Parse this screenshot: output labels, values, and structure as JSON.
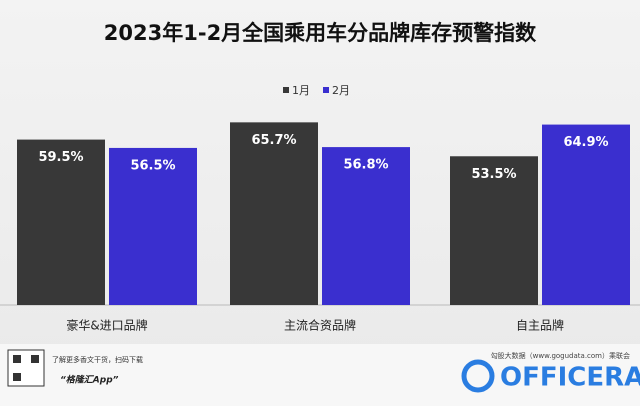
{
  "chart_data": {
    "type": "bar",
    "title": "2023年1-2月全国乘用车分品牌库存预警指数",
    "categories": [
      "豪华&进口品牌",
      "主流合资品牌",
      "自主品牌"
    ],
    "series": [
      {
        "name": "1月",
        "color": "#383838",
        "values": [
          59.5,
          65.7,
          53.5
        ],
        "value_labels": [
          "59.5%",
          "65.7%",
          "53.5%"
        ]
      },
      {
        "name": "2月",
        "color": "#3a2fcf",
        "values": [
          56.5,
          56.8,
          64.9
        ],
        "value_labels": [
          "56.5%",
          "56.8%",
          "64.9%"
        ]
      }
    ],
    "annotations": [
      "了解更多香文干货，扫码下载",
      "“格隆汇App”",
      "勾股大数据（www.gogudata.com）乘联会",
      "OFFICERA"
    ]
  }
}
